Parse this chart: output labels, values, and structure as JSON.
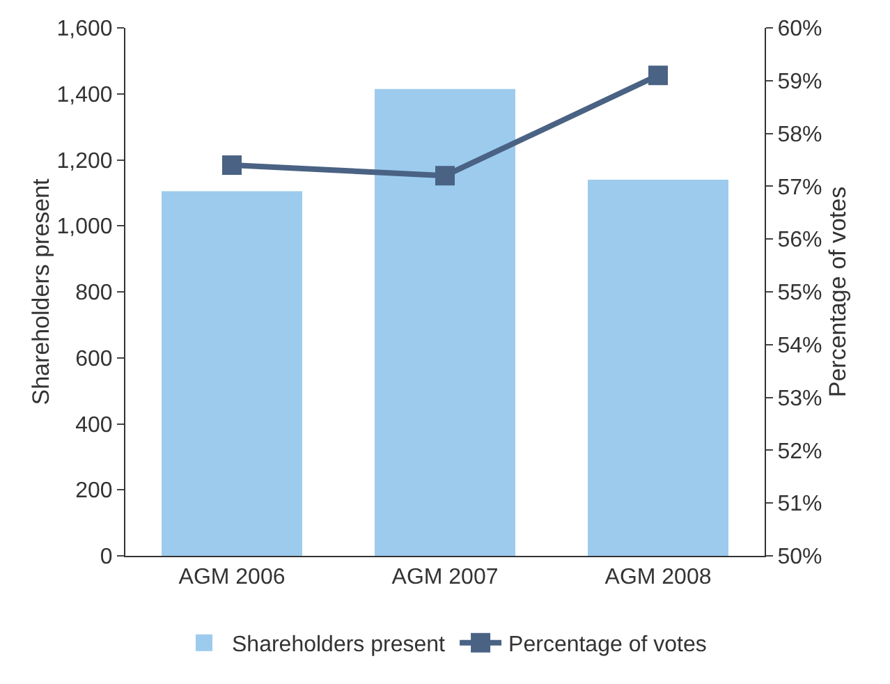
{
  "chart_data": {
    "type": "bar",
    "categories": [
      "AGM 2006",
      "AGM 2007",
      "AGM 2008"
    ],
    "ylabel": "Shareholders present",
    "y2label": "Percentage of votes",
    "series": [
      {
        "name": "Shareholders present",
        "color": "#9ccbee",
        "values": [
          1105,
          1415,
          1140
        ]
      },
      {
        "name": "Percentage of votes",
        "type": "line",
        "axis": "y2",
        "color": "#4a6283",
        "marker": "square",
        "values": [
          57.4,
          57.2,
          59.1
        ]
      }
    ],
    "ylim": [
      0,
      1600
    ],
    "yticks": [
      0,
      200,
      400,
      600,
      800,
      {
        "value": 1000,
        "label": "1,000"
      },
      {
        "value": 1200,
        "label": "1,200"
      },
      {
        "value": 1400,
        "label": "1,400"
      },
      {
        "value": 1600,
        "label": "1,600"
      }
    ],
    "y2lim": [
      50,
      60
    ],
    "y2ticks": [
      {
        "value": 50,
        "label": "50%"
      },
      {
        "value": 51,
        "label": "51%"
      },
      {
        "value": 52,
        "label": "52%"
      },
      {
        "value": 53,
        "label": "53%"
      },
      {
        "value": 54,
        "label": "54%"
      },
      {
        "value": 55,
        "label": "55%"
      },
      {
        "value": 56,
        "label": "56%"
      },
      {
        "value": 57,
        "label": "57%"
      },
      {
        "value": 58,
        "label": "58%"
      },
      {
        "value": 59,
        "label": "59%"
      },
      {
        "value": 60,
        "label": "60%"
      }
    ],
    "grid": false,
    "legend": "bottom"
  }
}
